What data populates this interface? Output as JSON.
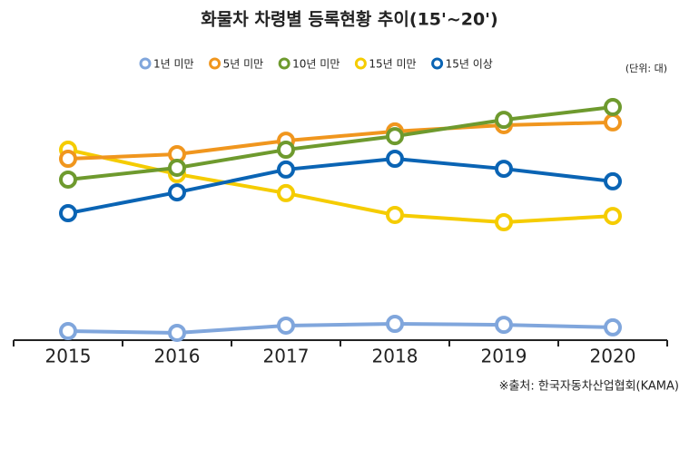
{
  "chart_data": {
    "type": "line",
    "title": "화물차 차령별 등록현황 추이(15'~20')",
    "unit": "(단위: 대)",
    "source": "※출처: 한국자동차산업협회(KAMA)",
    "categories": [
      "2015",
      "2016",
      "2017",
      "2018",
      "2019",
      "2020"
    ],
    "ylim": [
      0,
      1200000
    ],
    "series": [
      {
        "name": "1년 미만",
        "color": "#80a6dc",
        "values": [
          46000,
          37000,
          74000,
          83000,
          78000,
          65000
        ]
      },
      {
        "name": "5년 미만",
        "color": "#f0961e",
        "values": [
          923000,
          946000,
          1015000,
          1062000,
          1094000,
          1108000
        ]
      },
      {
        "name": "10년 미만",
        "color": "#6e9a2e",
        "values": [
          817000,
          877000,
          969000,
          1038000,
          1121000,
          1186000
        ]
      },
      {
        "name": "15년 미만",
        "color": "#f5cc00",
        "values": [
          969000,
          845000,
          748000,
          637000,
          600000,
          632000
        ]
      },
      {
        "name": "15년 이상",
        "color": "#0a64b4",
        "values": [
          646000,
          752000,
          868000,
          923000,
          872000,
          808000
        ]
      }
    ]
  }
}
